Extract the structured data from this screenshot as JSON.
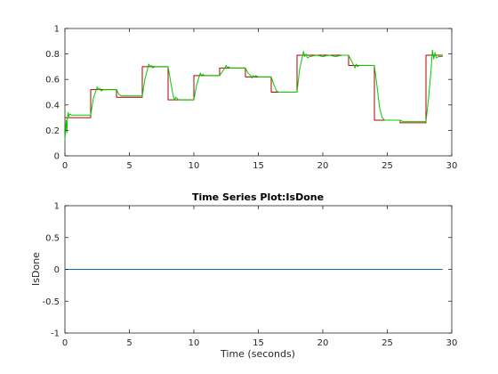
{
  "chart_data": [
    {
      "type": "line",
      "title": "",
      "xlabel": "",
      "ylabel": "",
      "xlim": [
        0,
        30
      ],
      "ylim": [
        0,
        1
      ],
      "xticks": [
        "0",
        "5",
        "10",
        "15",
        "20",
        "25",
        "30"
      ],
      "yticks": [
        "0",
        "0.2",
        "0.4",
        "0.6",
        "0.8",
        "1"
      ],
      "grid": false,
      "series": [
        {
          "color": "#b00000",
          "step": true,
          "x": [
            0,
            2,
            4,
            6,
            8,
            10,
            12,
            14,
            16,
            18,
            22,
            24,
            26,
            28,
            29.3
          ],
          "values": [
            0.3,
            0.52,
            0.46,
            0.7,
            0.44,
            0.63,
            0.69,
            0.62,
            0.5,
            0.79,
            0.71,
            0.28,
            0.26,
            0.79,
            0.79
          ]
        },
        {
          "color": "#00cc00",
          "x": [
            0,
            0.05,
            0.1,
            0.15,
            0.2,
            0.25,
            0.3,
            0.4,
            0.5,
            1.0,
            1.5,
            2.0,
            2.2,
            2.4,
            2.5,
            2.6,
            2.7,
            2.8,
            3.0,
            3.5,
            4.0,
            4.2,
            4.4,
            4.6,
            5.0,
            5.5,
            6.0,
            6.2,
            6.4,
            6.5,
            6.6,
            6.7,
            6.8,
            7.0,
            7.5,
            8.0,
            8.2,
            8.4,
            8.5,
            8.6,
            8.7,
            8.8,
            9.0,
            9.5,
            10.0,
            10.2,
            10.4,
            10.5,
            10.6,
            10.7,
            10.8,
            11.0,
            11.5,
            12.0,
            12.2,
            12.4,
            12.5,
            12.6,
            12.7,
            12.8,
            13.0,
            13.5,
            14.0,
            14.2,
            14.4,
            14.5,
            14.6,
            14.7,
            14.8,
            15.0,
            15.5,
            16.0,
            16.2,
            16.4,
            16.6,
            17.0,
            17.5,
            18.0,
            18.2,
            18.4,
            18.5,
            18.6,
            18.7,
            18.8,
            19.0,
            19.5,
            20.0,
            20.5,
            21.0,
            21.5,
            22.0,
            22.2,
            22.4,
            22.5,
            22.6,
            22.7,
            22.8,
            23.0,
            23.5,
            24.0,
            24.2,
            24.4,
            24.6,
            24.8,
            25.0,
            25.5,
            26.0,
            26.2,
            26.4,
            26.6,
            27.0,
            27.5,
            28.0,
            28.2,
            28.4,
            28.5,
            28.6,
            28.7,
            28.8,
            29.0,
            29.3
          ],
          "values": [
            0.12,
            0.2,
            0.28,
            0.18,
            0.3,
            0.34,
            0.31,
            0.33,
            0.32,
            0.32,
            0.32,
            0.32,
            0.45,
            0.51,
            0.54,
            0.52,
            0.53,
            0.51,
            0.52,
            0.52,
            0.52,
            0.48,
            0.47,
            0.47,
            0.47,
            0.47,
            0.47,
            0.6,
            0.68,
            0.72,
            0.7,
            0.71,
            0.69,
            0.7,
            0.7,
            0.7,
            0.58,
            0.47,
            0.44,
            0.46,
            0.45,
            0.44,
            0.44,
            0.44,
            0.44,
            0.55,
            0.62,
            0.65,
            0.63,
            0.64,
            0.63,
            0.63,
            0.63,
            0.63,
            0.66,
            0.69,
            0.71,
            0.69,
            0.7,
            0.69,
            0.69,
            0.69,
            0.69,
            0.65,
            0.63,
            0.61,
            0.63,
            0.62,
            0.63,
            0.62,
            0.62,
            0.62,
            0.56,
            0.51,
            0.5,
            0.5,
            0.5,
            0.5,
            0.68,
            0.77,
            0.82,
            0.78,
            0.8,
            0.77,
            0.78,
            0.79,
            0.78,
            0.79,
            0.78,
            0.79,
            0.79,
            0.75,
            0.71,
            0.69,
            0.72,
            0.7,
            0.71,
            0.71,
            0.71,
            0.71,
            0.55,
            0.38,
            0.3,
            0.28,
            0.28,
            0.28,
            0.28,
            0.27,
            0.27,
            0.27,
            0.27,
            0.27,
            0.27,
            0.45,
            0.68,
            0.83,
            0.76,
            0.81,
            0.77,
            0.78,
            0.78
          ]
        }
      ]
    },
    {
      "type": "line",
      "title": "Time Series Plot:IsDone",
      "xlabel": "Time (seconds)",
      "ylabel": "IsDone",
      "xlim": [
        0,
        30
      ],
      "ylim": [
        -1,
        1
      ],
      "xticks": [
        "0",
        "5",
        "10",
        "15",
        "20",
        "25",
        "30"
      ],
      "yticks": [
        "-1",
        "-0.5",
        "0",
        "0.5",
        "1"
      ],
      "grid": false,
      "series": [
        {
          "color": "#0072bd",
          "x": [
            0,
            29.3
          ],
          "values": [
            0,
            0
          ]
        }
      ]
    }
  ]
}
